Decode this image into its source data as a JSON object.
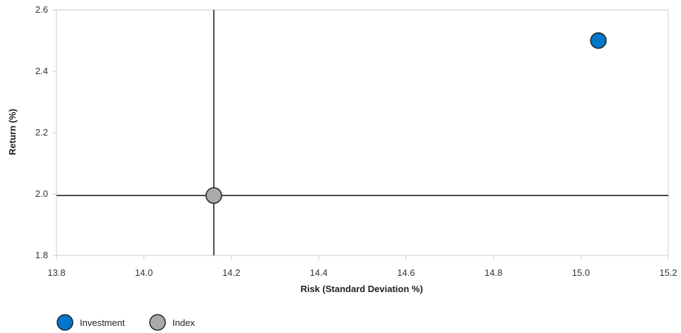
{
  "chart_data": {
    "type": "scatter",
    "xlabel": "Risk (Standard Deviation %)",
    "ylabel": "Return (%)",
    "xlim": [
      13.8,
      15.2
    ],
    "ylim": [
      1.8,
      2.6
    ],
    "x_ticks": [
      "13.8",
      "14.0",
      "14.2",
      "14.4",
      "14.6",
      "14.8",
      "15.0",
      "15.2"
    ],
    "y_ticks": [
      "1.8",
      "2.0",
      "2.2",
      "2.4",
      "2.6"
    ],
    "grid": false,
    "reference_lines": {
      "x": 14.16,
      "y": 1.995
    },
    "legend_position": "bottom-left",
    "series": [
      {
        "name": "Investment",
        "color": "#0077c8",
        "points": [
          {
            "x": 15.04,
            "y": 2.5
          }
        ]
      },
      {
        "name": "Index",
        "color": "#aaaaaa",
        "points": [
          {
            "x": 14.16,
            "y": 1.995
          }
        ]
      }
    ]
  }
}
